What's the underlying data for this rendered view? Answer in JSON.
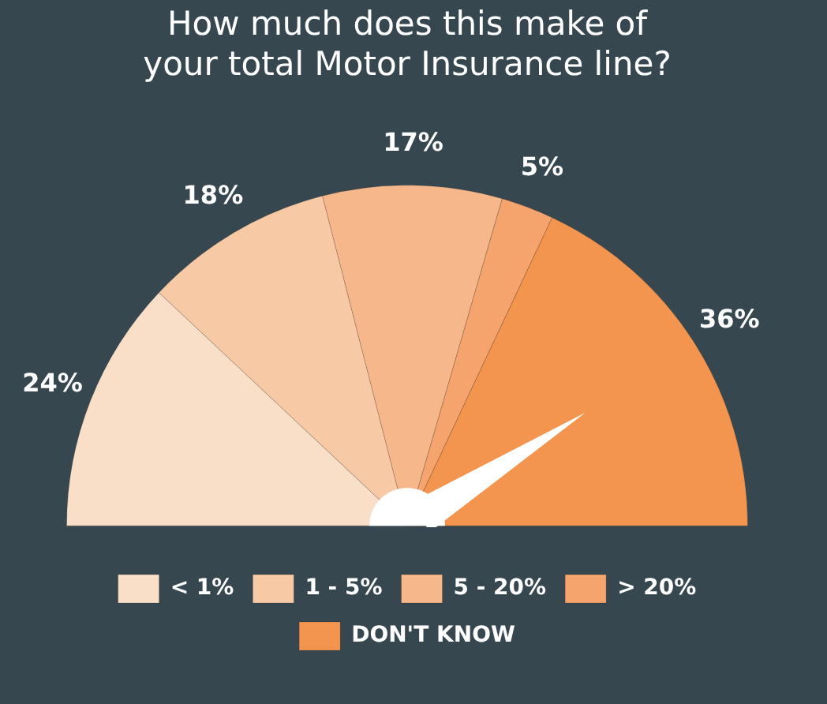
{
  "chart_data": {
    "type": "pie",
    "title": "How much does this make of\nyour total Motor Insurance line?",
    "categories": [
      "< 1%",
      "1 - 5%",
      "5 - 20%",
      "> 20%",
      "DON'T KNOW"
    ],
    "values": [
      24,
      18,
      17,
      5,
      36
    ],
    "value_labels": [
      "24%",
      "18%",
      "17%",
      "5%",
      "36%"
    ],
    "colors": [
      "#f9dfc8",
      "#f8c9a5",
      "#f6b88b",
      "#f4a46c",
      "#f3954f"
    ],
    "needle": "DON'T KNOW",
    "legend": "bottom"
  }
}
